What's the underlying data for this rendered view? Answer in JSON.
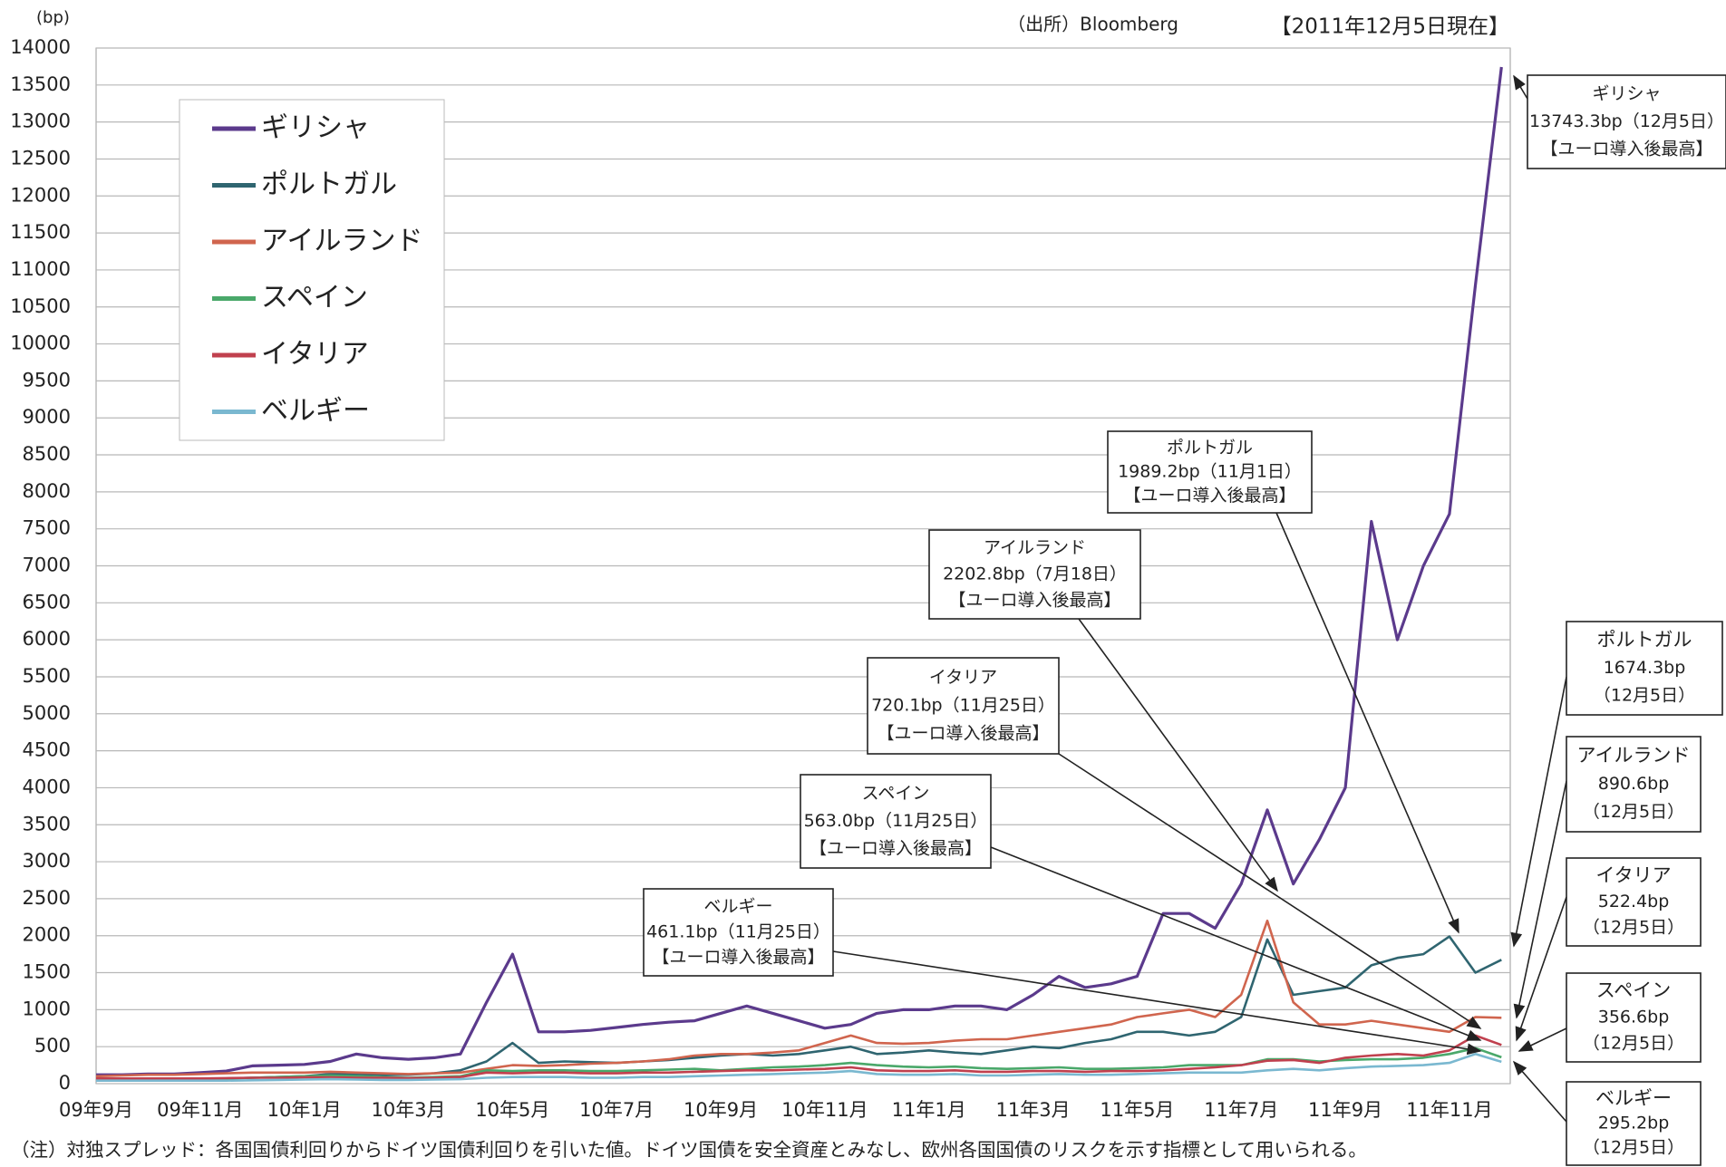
{
  "chart_data": {
    "type": "line",
    "y_unit": "(bp)",
    "source": "（出所）Bloomberg",
    "date_note": "【2011年12月5日現在】",
    "footnote": "（注）対独スプレッド：各国国債利回りからドイツ国債利回りを引いた値。ドイツ国債を安全資産とみなし、欧州各国国債のリスクを示す指標として用いられる。",
    "categories": [
      "09年9月",
      null,
      null,
      null,
      "09年11月",
      null,
      null,
      null,
      "10年1月",
      null,
      null,
      null,
      "10年3月",
      null,
      null,
      null,
      "10年5月",
      null,
      null,
      null,
      "10年7月",
      null,
      null,
      null,
      "10年9月",
      null,
      null,
      null,
      "10年11月",
      null,
      null,
      null,
      "11年1月",
      null,
      null,
      null,
      "11年3月",
      null,
      null,
      null,
      "11年5月",
      null,
      null,
      null,
      "11年7月",
      null,
      null,
      null,
      "11年9月",
      null,
      null,
      null,
      "11年11月",
      null,
      null
    ],
    "series": [
      {
        "name": "ギリシャ",
        "color": "#5b3a8c",
        "values": [
          120,
          120,
          130,
          130,
          150,
          170,
          240,
          250,
          260,
          300,
          400,
          350,
          330,
          350,
          400,
          1100,
          1750,
          700,
          700,
          720,
          760,
          800,
          830,
          850,
          950,
          1050,
          950,
          850,
          750,
          800,
          950,
          1000,
          1000,
          1050,
          1050,
          1000,
          1200,
          1450,
          1300,
          1350,
          1450,
          2300,
          2300,
          2100,
          2700,
          3700,
          2700,
          3300,
          4000,
          7600,
          6000,
          7000,
          7700,
          10800,
          13743.3
        ]
      },
      {
        "name": "ポルトガル",
        "color": "#2f6570",
        "values": [
          50,
          55,
          60,
          60,
          65,
          70,
          80,
          90,
          100,
          130,
          130,
          120,
          120,
          140,
          180,
          300,
          550,
          280,
          300,
          290,
          280,
          300,
          320,
          350,
          380,
          400,
          380,
          400,
          450,
          500,
          400,
          420,
          450,
          420,
          400,
          450,
          500,
          480,
          550,
          600,
          700,
          700,
          650,
          700,
          900,
          1950,
          1200,
          1250,
          1300,
          1600,
          1700,
          1750,
          1989.2,
          1500,
          1674.3
        ]
      },
      {
        "name": "アイルランド",
        "color": "#d0654e",
        "values": [
          100,
          110,
          120,
          120,
          130,
          140,
          150,
          150,
          150,
          160,
          150,
          140,
          130,
          140,
          150,
          200,
          250,
          240,
          250,
          270,
          280,
          300,
          330,
          380,
          400,
          400,
          420,
          450,
          550,
          650,
          550,
          540,
          550,
          580,
          600,
          600,
          650,
          700,
          750,
          800,
          900,
          950,
          1000,
          900,
          1200,
          2202.8,
          1100,
          800,
          800,
          850,
          800,
          750,
          700,
          900,
          890.6
        ]
      },
      {
        "name": "スペイン",
        "color": "#4aa86a",
        "values": [
          60,
          60,
          60,
          60,
          60,
          70,
          80,
          90,
          100,
          110,
          100,
          90,
          80,
          90,
          100,
          180,
          170,
          180,
          180,
          170,
          170,
          180,
          190,
          200,
          180,
          200,
          220,
          230,
          250,
          280,
          250,
          230,
          220,
          230,
          210,
          200,
          210,
          220,
          200,
          200,
          210,
          220,
          250,
          250,
          250,
          330,
          330,
          300,
          320,
          330,
          330,
          350,
          400,
          480,
          356.6
        ]
      },
      {
        "name": "イタリア",
        "color": "#c0404e",
        "values": [
          70,
          70,
          70,
          70,
          70,
          75,
          80,
          80,
          85,
          85,
          80,
          80,
          75,
          80,
          90,
          150,
          140,
          150,
          150,
          140,
          140,
          150,
          150,
          160,
          170,
          180,
          180,
          190,
          200,
          220,
          180,
          170,
          170,
          180,
          160,
          160,
          170,
          170,
          160,
          170,
          170,
          180,
          200,
          220,
          250,
          310,
          320,
          280,
          350,
          380,
          400,
          380,
          450,
          650,
          522.4
        ]
      },
      {
        "name": "ベルギー",
        "color": "#7ab8d0",
        "values": [
          40,
          40,
          40,
          40,
          40,
          40,
          45,
          50,
          55,
          60,
          55,
          50,
          50,
          55,
          60,
          80,
          90,
          90,
          90,
          80,
          80,
          90,
          90,
          100,
          110,
          120,
          130,
          140,
          150,
          170,
          130,
          120,
          120,
          130,
          110,
          110,
          120,
          130,
          120,
          120,
          130,
          140,
          150,
          150,
          150,
          180,
          200,
          180,
          210,
          230,
          240,
          250,
          280,
          400,
          295.2
        ]
      }
    ],
    "ylim": [
      0,
      14000
    ],
    "yticks": [
      0,
      500,
      1000,
      1500,
      2000,
      2500,
      3000,
      3500,
      4000,
      4500,
      5000,
      5500,
      6000,
      6500,
      7000,
      7500,
      8000,
      8500,
      9000,
      9500,
      10000,
      10500,
      11000,
      11500,
      12000,
      12500,
      13000,
      13500,
      14000
    ],
    "grid": true,
    "legend": "upper left",
    "annotations": [
      {
        "lines": [
          "ギリシャ",
          "13743.3bp（12月5日）",
          "【ユーロ導入後最高】"
        ]
      },
      {
        "lines": [
          "ポルトガル",
          "1989.2bp（11月1日）",
          "【ユーロ導入後最高】"
        ]
      },
      {
        "lines": [
          "アイルランド",
          "2202.8bp（7月18日）",
          "【ユーロ導入後最高】"
        ]
      },
      {
        "lines": [
          "イタリア",
          "720.1bp（11月25日）",
          "【ユーロ導入後最高】"
        ]
      },
      {
        "lines": [
          "スペイン",
          "563.0bp（11月25日）",
          "【ユーロ導入後最高】"
        ]
      },
      {
        "lines": [
          "ベルギー",
          "461.1bp（11月25日）",
          "【ユーロ導入後最高】"
        ]
      },
      {
        "lines": [
          "ポルトガル",
          "1674.3bp",
          "（12月5日）"
        ]
      },
      {
        "lines": [
          "アイルランド",
          "890.6bp",
          "（12月5日）"
        ]
      },
      {
        "lines": [
          "イタリア",
          "522.4bp",
          "（12月5日）"
        ]
      },
      {
        "lines": [
          "スペイン",
          "356.6bp",
          "（12月5日）"
        ]
      },
      {
        "lines": [
          "ベルギー",
          "295.2bp",
          "（12月5日）"
        ]
      }
    ]
  }
}
